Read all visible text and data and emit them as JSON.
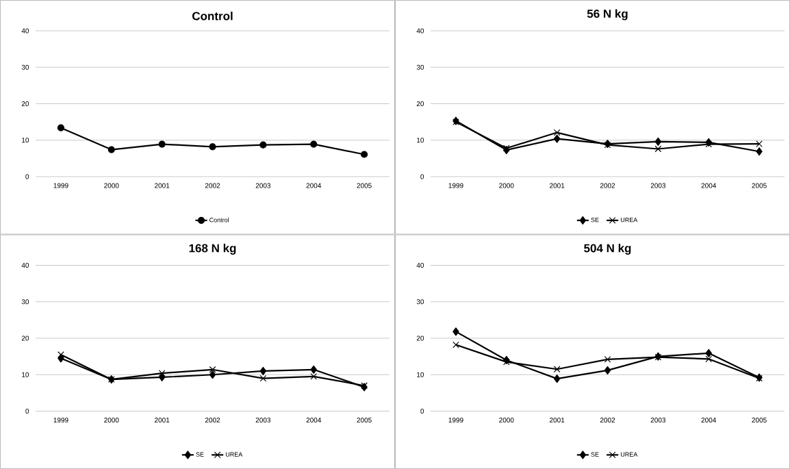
{
  "chart_data": [
    {
      "type": "line",
      "title": "Control",
      "categories": [
        "1999",
        "2000",
        "2001",
        "2002",
        "2003",
        "2004",
        "2005"
      ],
      "ylim": [
        0,
        40
      ],
      "yticks": [
        0,
        10,
        20,
        30,
        40
      ],
      "grid": "y",
      "legend": "bottom",
      "line_style": "solid",
      "series": [
        {
          "name": "Control",
          "color": "#000000",
          "marker": "circle",
          "values": [
            13.4,
            7.4,
            8.9,
            8.2,
            8.7,
            8.9,
            6.1
          ]
        }
      ]
    },
    {
      "type": "line",
      "title": "56 N kg",
      "categories": [
        "1999",
        "2000",
        "2001",
        "2002",
        "2003",
        "2004",
        "2005"
      ],
      "ylim": [
        0,
        40
      ],
      "yticks": [
        0,
        10,
        20,
        30,
        40
      ],
      "grid": "y",
      "legend": "bottom",
      "line_style": "solid",
      "series": [
        {
          "name": "SE",
          "color": "#000000",
          "marker": "diamond",
          "values": [
            15.3,
            7.3,
            10.4,
            9.0,
            9.6,
            9.4,
            6.9
          ]
        },
        {
          "name": "UREA",
          "color": "#000000",
          "marker": "cross",
          "values": [
            15.0,
            7.8,
            12.1,
            8.7,
            7.6,
            8.9,
            9.0
          ]
        }
      ]
    },
    {
      "type": "line",
      "title": "168 N kg",
      "categories": [
        "1999",
        "2000",
        "2001",
        "2002",
        "2003",
        "2004",
        "2005"
      ],
      "ylim": [
        0,
        40
      ],
      "yticks": [
        0,
        10,
        20,
        30,
        40
      ],
      "grid": "y",
      "legend": "bottom",
      "line_style": "solid",
      "series": [
        {
          "name": "SE",
          "color": "#000000",
          "marker": "diamond",
          "values": [
            14.5,
            8.7,
            9.3,
            10.0,
            11.0,
            11.4,
            6.6
          ]
        },
        {
          "name": "UREA",
          "color": "#000000",
          "marker": "cross",
          "values": [
            15.5,
            8.7,
            10.4,
            11.4,
            9.0,
            9.5,
            7.0
          ]
        }
      ]
    },
    {
      "type": "line",
      "title": "504 N kg",
      "categories": [
        "1999",
        "2000",
        "2001",
        "2002",
        "2003",
        "2004",
        "2005"
      ],
      "ylim": [
        0,
        40
      ],
      "yticks": [
        0,
        10,
        20,
        30,
        40
      ],
      "grid": "y",
      "legend": "bottom",
      "line_style": "solid",
      "series": [
        {
          "name": "SE",
          "color": "#000000",
          "marker": "diamond",
          "values": [
            21.8,
            14.0,
            8.9,
            11.2,
            15.0,
            15.9,
            9.2
          ]
        },
        {
          "name": "UREA",
          "color": "#000000",
          "marker": "cross",
          "values": [
            18.2,
            13.5,
            11.5,
            14.2,
            14.8,
            14.3,
            9.0
          ]
        }
      ]
    }
  ]
}
